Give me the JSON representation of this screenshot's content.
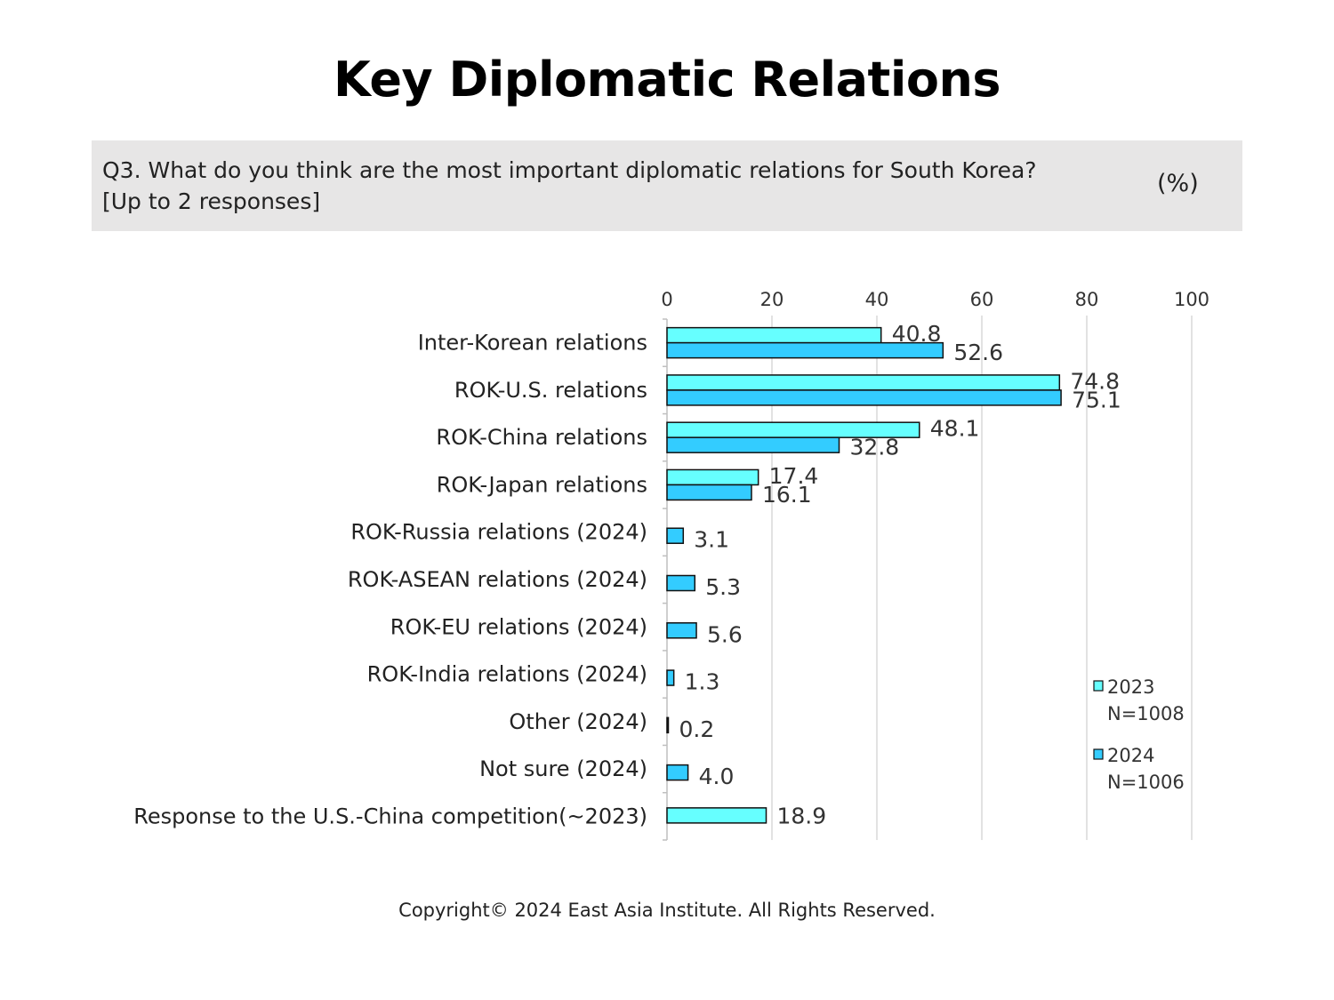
{
  "header": {
    "title": "Key Diplomatic Relations",
    "question_line1": "Q3. What do you think are the most important diplomatic relations for South Korea?",
    "question_line2": "[Up to 2 responses]",
    "unit": "(%)"
  },
  "footer": {
    "copyright": "Copyright© 2024 East Asia Institute. All Rights Reserved."
  },
  "chart_data": {
    "type": "bar",
    "orientation": "horizontal",
    "categories": [
      "Inter-Korean relations",
      "ROK-U.S. relations",
      "ROK-China relations",
      "ROK-Japan relations",
      "ROK-Russia relations (2024)",
      "ROK-ASEAN relations (2024)",
      "ROK-EU relations (2024)",
      "ROK-India relations (2024)",
      "Other (2024)",
      "Not sure (2024)",
      "Response to the U.S.-China competition(~2023)"
    ],
    "series": [
      {
        "name": "2023",
        "sample": "N=1008",
        "color": "#66ffff",
        "values": [
          40.8,
          74.8,
          48.1,
          17.4,
          null,
          null,
          null,
          null,
          null,
          null,
          18.9
        ]
      },
      {
        "name": "2024",
        "sample": "N=1006",
        "color": "#33ccff",
        "values": [
          52.6,
          75.1,
          32.8,
          16.1,
          3.1,
          5.3,
          5.6,
          1.3,
          0.2,
          4.0,
          null
        ]
      }
    ],
    "xlim": [
      0,
      100
    ],
    "xticks": [
      0,
      20,
      40,
      60,
      80,
      100
    ],
    "x_axis_position": "top",
    "grid": true,
    "legend_position": "bottom-right",
    "value_format_decimals": 1
  }
}
